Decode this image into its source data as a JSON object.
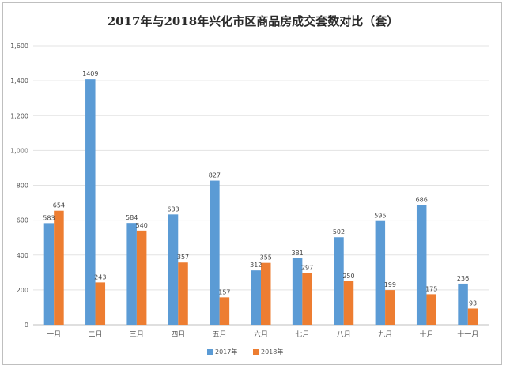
{
  "chart_data": {
    "type": "bar",
    "title": "2017年与2018年兴化市区商品房成交套数对比（套）",
    "categories": [
      "一月",
      "二月",
      "三月",
      "四月",
      "五月",
      "六月",
      "七月",
      "八月",
      "九月",
      "十月",
      "十一月"
    ],
    "series": [
      {
        "name": "2017年",
        "color": "#5b9bd5",
        "values": [
          583,
          1409,
          584,
          633,
          827,
          312,
          381,
          502,
          595,
          686,
          236
        ]
      },
      {
        "name": "2018年",
        "color": "#ed7d31",
        "values": [
          654,
          243,
          540,
          357,
          157,
          355,
          297,
          250,
          199,
          175,
          93
        ]
      }
    ],
    "ylim": [
      0,
      1600
    ],
    "yticks": [
      "0",
      "200",
      "400",
      "600",
      "800",
      "1,000",
      "1,200",
      "1,400",
      "1,600"
    ],
    "grid": true,
    "legend_position": "bottom"
  }
}
